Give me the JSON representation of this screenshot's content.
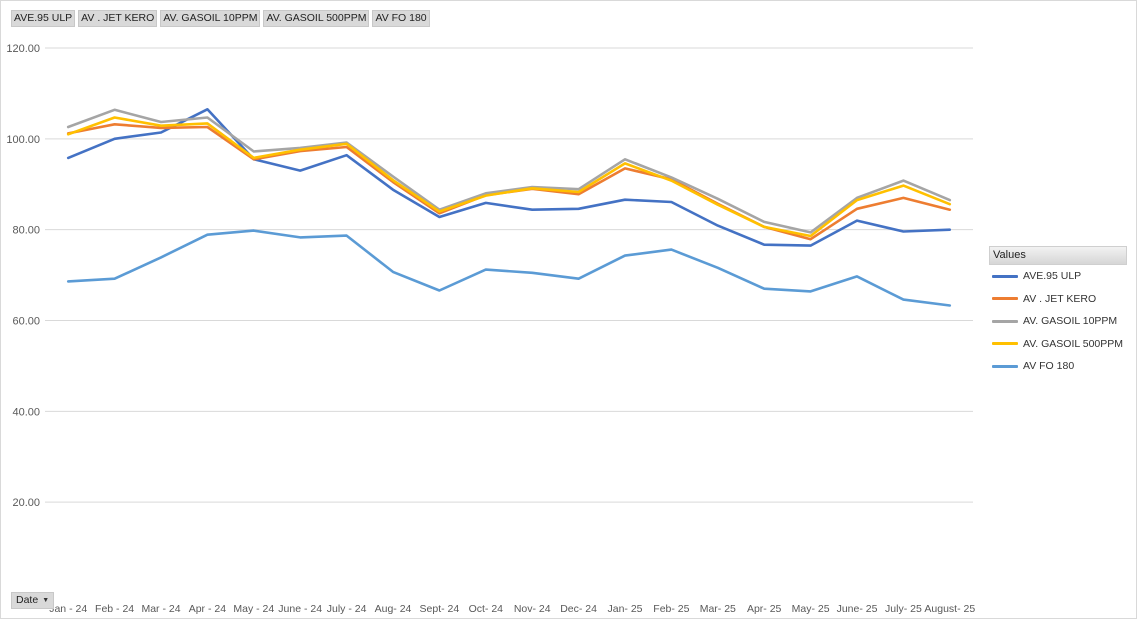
{
  "field_buttons": [
    "AVE.95 ULP",
    "AV . JET KERO",
    "AV. GASOIL 10PPM",
    "AV. GASOIL 500PPM",
    "AV FO 180"
  ],
  "axis_button": {
    "label": "Date",
    "icon": "dropdown-caret-icon"
  },
  "legend": {
    "title": "Values",
    "position": "right"
  },
  "colors": {
    "grid": "#d9d9d9",
    "AVE.95 ULP": "#4472c4",
    "AV . JET KERO": "#ed7d31",
    "AV. GASOIL 10PPM": "#a5a5a5",
    "AV. GASOIL 500PPM": "#ffc000",
    "AV FO 180": "#5b9bd5"
  },
  "chart_data": {
    "type": "line",
    "title": "",
    "xlabel": "",
    "ylabel": "",
    "ylim": [
      0,
      120
    ],
    "yticks": [
      "20.00",
      "40.00",
      "60.00",
      "80.00",
      "100.00",
      "120.00"
    ],
    "ytick_values": [
      20,
      40,
      60,
      80,
      100,
      120
    ],
    "grid": true,
    "categories": [
      "Jan - 24",
      "Feb - 24",
      "Mar - 24",
      "Apr - 24",
      "May - 24",
      "June - 24",
      "July - 24",
      "Aug- 24",
      "Sept- 24",
      "Oct- 24",
      "Nov- 24",
      "Dec- 24",
      "Jan- 25",
      "Feb- 25",
      "Mar- 25",
      "Apr- 25",
      "May- 25",
      "June- 25",
      "July- 25",
      "August- 25"
    ],
    "series": [
      {
        "name": "AVE.95 ULP",
        "values": [
          95.8,
          100.0,
          101.4,
          106.5,
          95.5,
          93.0,
          96.4,
          88.8,
          82.8,
          85.9,
          84.4,
          84.6,
          86.6,
          86.1,
          80.9,
          76.7,
          76.5,
          82.0,
          79.6,
          80.0
        ]
      },
      {
        "name": "AV . JET KERO",
        "values": [
          101.2,
          103.2,
          102.4,
          102.6,
          95.5,
          97.3,
          98.2,
          90.5,
          83.6,
          87.6,
          89.0,
          87.8,
          93.5,
          91.1,
          85.7,
          80.6,
          77.9,
          84.6,
          87.0,
          84.4
        ]
      },
      {
        "name": "AV. GASOIL 10PPM",
        "values": [
          102.6,
          106.4,
          103.7,
          104.7,
          97.2,
          98.0,
          99.2,
          91.7,
          84.4,
          88.0,
          89.4,
          88.9,
          95.5,
          91.5,
          86.8,
          81.7,
          79.4,
          87.0,
          90.8,
          86.5
        ]
      },
      {
        "name": "AV. GASOIL 500PPM",
        "values": [
          101.0,
          104.7,
          102.9,
          103.4,
          95.8,
          97.6,
          98.9,
          90.9,
          84.0,
          87.5,
          89.1,
          88.3,
          94.6,
          90.8,
          85.5,
          80.6,
          78.6,
          86.5,
          89.7,
          85.6
        ]
      },
      {
        "name": "AV FO 180",
        "values": [
          68.6,
          69.2,
          73.9,
          78.9,
          79.8,
          78.3,
          78.7,
          70.7,
          66.6,
          71.2,
          70.5,
          69.2,
          74.3,
          75.6,
          71.6,
          67.0,
          66.4,
          69.7,
          64.6,
          63.3
        ]
      }
    ]
  }
}
